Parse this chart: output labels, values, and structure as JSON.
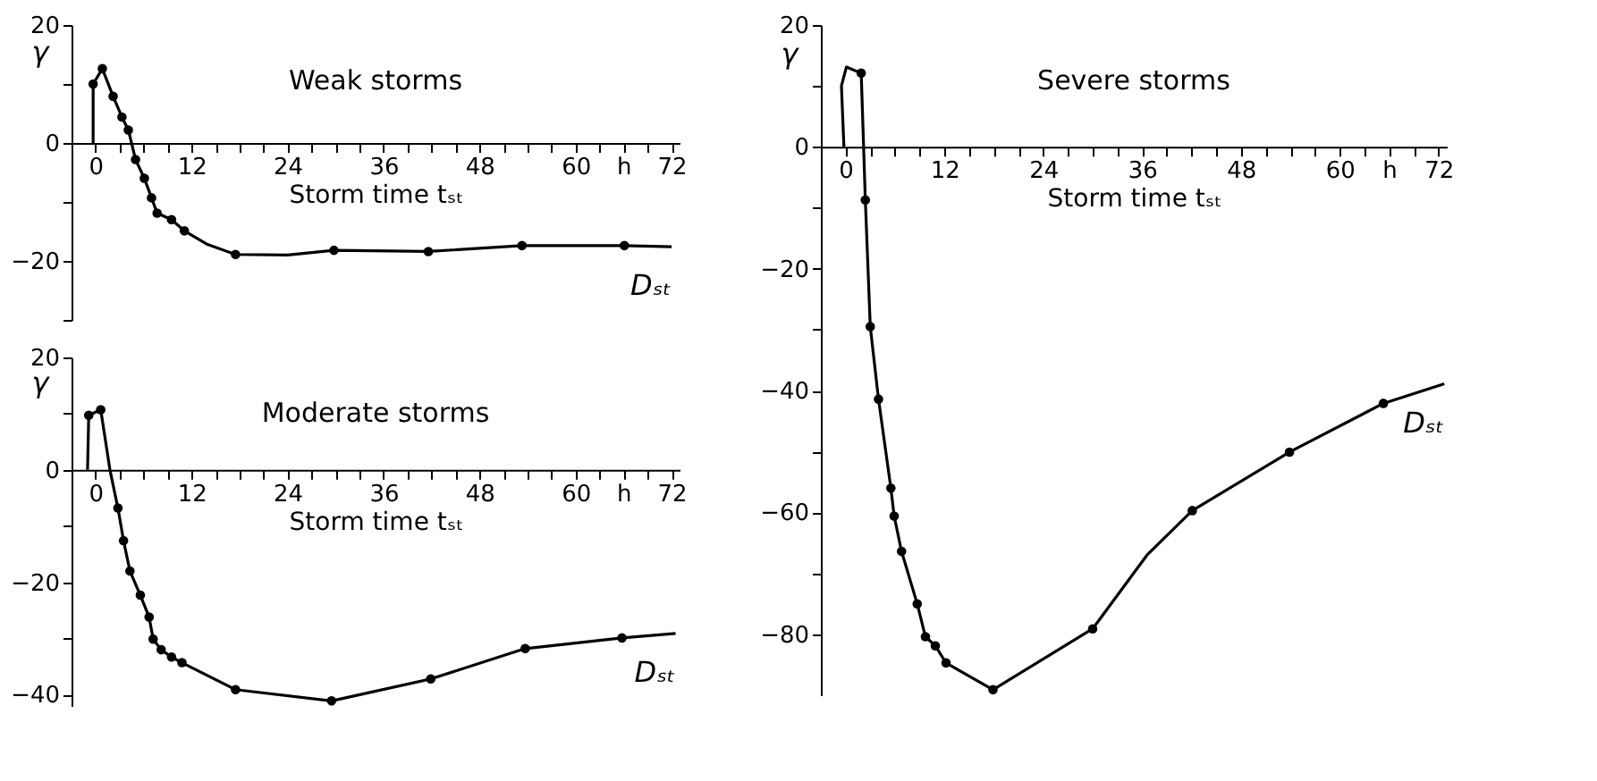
{
  "chart_data": [
    {
      "type": "line",
      "title": "Weak storms",
      "xlabel": "Storm time tₛₜ",
      "ylabel": "γ",
      "xlim": [
        -3,
        73
      ],
      "ylim": [
        -30,
        20
      ],
      "xticks": [
        0,
        {
          "value": 3,
          "label": null
        },
        {
          "value": 6,
          "label": null
        },
        {
          "value": 9,
          "label": null
        },
        12,
        {
          "value": 15,
          "label": null
        },
        {
          "value": 18,
          "label": null
        },
        {
          "value": 21,
          "label": null
        },
        24,
        {
          "value": 27,
          "label": null
        },
        {
          "value": 30,
          "label": null
        },
        {
          "value": 33,
          "label": null
        },
        36,
        {
          "value": 39,
          "label": null
        },
        {
          "value": 42,
          "label": null
        },
        {
          "value": 45,
          "label": null
        },
        48,
        {
          "value": 51,
          "label": null
        },
        {
          "value": 54,
          "label": null
        },
        {
          "value": 57,
          "label": null
        },
        60,
        {
          "value": 63,
          "label": null
        },
        {
          "value": 66,
          "label": "h"
        },
        {
          "value": 69,
          "label": null
        },
        72
      ],
      "yticks": [
        20,
        {
          "value": 10,
          "label": null
        },
        0,
        {
          "value": -10,
          "label": null
        },
        -20,
        {
          "value": -30,
          "label": null
        }
      ],
      "grid": false,
      "series": [
        {
          "color": "#000000",
          "x": [
            -0.3,
            -0.3,
            0.85,
            2.2,
            3.3,
            4.1,
            5.0,
            6.1,
            7.0,
            7.7,
            9.5,
            11.1,
            14,
            17.5,
            24,
            29.8,
            41.6,
            53.3,
            66.1,
            72
          ],
          "values": [
            0,
            10,
            12.6,
            7.9,
            4.4,
            2.2,
            -2.8,
            -6.0,
            -9.3,
            -11.9,
            -13.0,
            -14.9,
            -17.2,
            -18.9,
            -19,
            -18.2,
            -18.4,
            -17.4,
            -17.4,
            -17.6
          ]
        },
        {
          "type": "scatter",
          "color": "#000000",
          "x": [
            -0.3,
            0.85,
            2.2,
            3.3,
            4.1,
            5.0,
            6.1,
            7.0,
            7.7,
            9.5,
            11.1,
            17.5,
            29.8,
            41.6,
            53.3,
            66.1
          ],
          "values": [
            10,
            12.6,
            7.9,
            4.4,
            2.2,
            -2.8,
            -6.0,
            -9.3,
            -11.9,
            -13.0,
            -14.9,
            -18.9,
            -18.2,
            -18.4,
            -17.4,
            -17.4
          ]
        }
      ],
      "annotations": [
        "Dₛₜ"
      ]
    },
    {
      "type": "line",
      "title": "Moderate storms",
      "xlabel": "Storm time tₛₜ",
      "ylabel": "γ",
      "xlim": [
        -3,
        73
      ],
      "ylim": [
        -42,
        20
      ],
      "xticks": [
        0,
        {
          "value": 3,
          "label": null
        },
        {
          "value": 6,
          "label": null
        },
        {
          "value": 9,
          "label": null
        },
        12,
        {
          "value": 15,
          "label": null
        },
        {
          "value": 18,
          "label": null
        },
        {
          "value": 21,
          "label": null
        },
        24,
        {
          "value": 27,
          "label": null
        },
        {
          "value": 30,
          "label": null
        },
        {
          "value": 33,
          "label": null
        },
        36,
        {
          "value": 39,
          "label": null
        },
        {
          "value": 42,
          "label": null
        },
        {
          "value": 45,
          "label": null
        },
        48,
        {
          "value": 51,
          "label": null
        },
        {
          "value": 54,
          "label": null
        },
        {
          "value": 57,
          "label": null
        },
        60,
        {
          "value": 63,
          "label": null
        },
        {
          "value": 66,
          "label": "h"
        },
        {
          "value": 69,
          "label": null
        },
        72
      ],
      "yticks": [
        20,
        {
          "value": 10,
          "label": null
        },
        0,
        {
          "value": -10,
          "label": null
        },
        -20,
        {
          "value": -30,
          "label": null
        },
        -40
      ],
      "grid": false,
      "series": [
        {
          "color": "#000000",
          "x": [
            -1.0,
            -0.85,
            0.65,
            1.8,
            2.8,
            3.5,
            4.3,
            5.6,
            6.7,
            7.2,
            8.2,
            9.5,
            10.8,
            17.5,
            29.5,
            41.9,
            53.7,
            65.8,
            72.5
          ],
          "values": [
            0,
            9.7,
            10.7,
            0,
            -6.8,
            -12.6,
            -18.0,
            -22.3,
            -26.2,
            -30.1,
            -32.0,
            -33.3,
            -34.3,
            -39.1,
            -41.1,
            -37.2,
            -31.8,
            -29.9,
            -29.1
          ]
        },
        {
          "type": "scatter",
          "color": "#000000",
          "x": [
            -0.85,
            0.65,
            2.8,
            3.5,
            4.3,
            5.6,
            6.7,
            7.2,
            8.2,
            9.5,
            10.8,
            17.5,
            29.5,
            41.9,
            53.7,
            65.8
          ],
          "values": [
            9.7,
            10.7,
            -6.8,
            -12.6,
            -18.0,
            -22.3,
            -26.2,
            -30.1,
            -32.0,
            -33.3,
            -34.3,
            -39.1,
            -41.1,
            -37.2,
            -31.8,
            -29.9
          ]
        }
      ],
      "annotations": [
        "Dₛₜ"
      ]
    },
    {
      "type": "line",
      "title": "Severe storms",
      "xlabel": "Storm time tₛₜ",
      "ylabel": "γ",
      "xlim": [
        -3,
        73
      ],
      "ylim": [
        -90,
        20
      ],
      "xticks": [
        0,
        {
          "value": 3,
          "label": null
        },
        {
          "value": 6,
          "label": null
        },
        {
          "value": 9,
          "label": null
        },
        12,
        {
          "value": 15,
          "label": null
        },
        {
          "value": 18,
          "label": null
        },
        {
          "value": 21,
          "label": null
        },
        24,
        {
          "value": 27,
          "label": null
        },
        {
          "value": 30,
          "label": null
        },
        {
          "value": 33,
          "label": null
        },
        36,
        {
          "value": 39,
          "label": null
        },
        {
          "value": 42,
          "label": null
        },
        {
          "value": 45,
          "label": null
        },
        48,
        {
          "value": 51,
          "label": null
        },
        {
          "value": 54,
          "label": null
        },
        {
          "value": 57,
          "label": null
        },
        60,
        {
          "value": 63,
          "label": null
        },
        {
          "value": 66,
          "label": "h"
        },
        {
          "value": 69,
          "label": null
        },
        72
      ],
      "yticks": [
        20,
        {
          "value": 10,
          "label": null
        },
        0,
        {
          "value": -10,
          "label": null
        },
        -20,
        {
          "value": -30,
          "label": null
        },
        -40,
        {
          "value": -50,
          "label": null
        },
        -60,
        {
          "value": -70,
          "label": null
        },
        -80
      ],
      "grid": false,
      "series": [
        {
          "color": "#000000",
          "x": [
            -0.2,
            -0.5,
            0.1,
            1.9,
            2.4,
            3.0,
            4.0,
            5.5,
            5.9,
            6.8,
            8.7,
            9.7,
            10.9,
            12.2,
            17.9,
            30.0,
            36.6,
            42.1,
            53.9,
            65.3,
            72.7
          ],
          "values": [
            0,
            10,
            13.1,
            12.1,
            -8.7,
            -29.5,
            -41.4,
            -56.0,
            -60.6,
            -66.4,
            -75.0,
            -80.4,
            -81.9,
            -84.7,
            -89.1,
            -79.1,
            -67,
            -59.7,
            -50.1,
            -42.1,
            -38.9
          ]
        },
        {
          "type": "scatter",
          "color": "#000000",
          "x": [
            1.9,
            2.4,
            3.0,
            4.0,
            5.5,
            5.9,
            6.8,
            8.7,
            9.7,
            10.9,
            12.2,
            17.9,
            30.0,
            42.1,
            53.9,
            65.3
          ],
          "values": [
            12.1,
            -8.7,
            -29.5,
            -41.4,
            -56.0,
            -60.6,
            -66.4,
            -75.0,
            -80.4,
            -81.9,
            -84.7,
            -89.1,
            -79.1,
            -59.7,
            -50.1,
            -42.1
          ]
        }
      ],
      "annotations": [
        "Dₛₜ"
      ]
    }
  ]
}
